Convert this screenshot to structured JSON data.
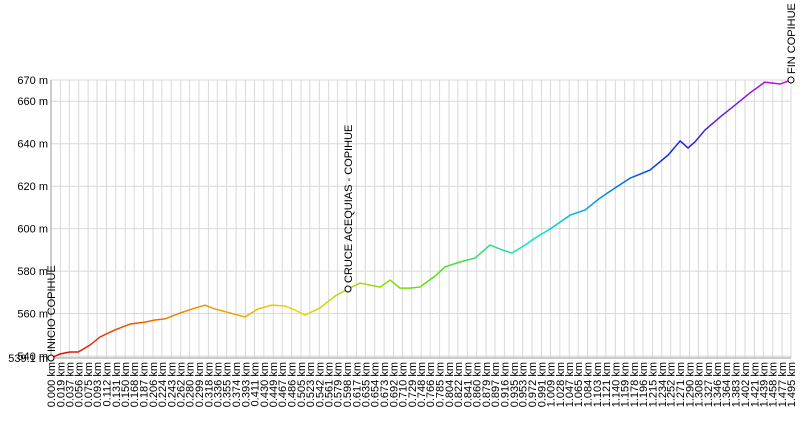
{
  "chart_data": {
    "type": "line",
    "x": [
      0,
      0.018,
      0.038,
      0.055,
      0.079,
      0.099,
      0.129,
      0.16,
      0.19,
      0.21,
      0.23,
      0.261,
      0.291,
      0.311,
      0.331,
      0.362,
      0.392,
      0.418,
      0.446,
      0.473,
      0.493,
      0.513,
      0.543,
      0.574,
      0.6,
      0.624,
      0.665,
      0.685,
      0.705,
      0.725,
      0.745,
      0.776,
      0.796,
      0.826,
      0.857,
      0.887,
      0.907,
      0.931,
      0.958,
      0.978,
      1.008,
      1.049,
      1.079,
      1.109,
      1.139,
      1.17,
      1.21,
      1.247,
      1.271,
      1.287,
      1.301,
      1.321,
      1.352,
      1.382,
      1.412,
      1.442,
      1.473,
      1.495
    ],
    "values": [
      539.1,
      541,
      541.9,
      541.9,
      545.2,
      549,
      552.3,
      555.1,
      556,
      557,
      557.5,
      560.3,
      562.6,
      564,
      562.2,
      560.3,
      558.4,
      562.2,
      564,
      563.6,
      561.7,
      559.3,
      562.6,
      568.3,
      571.6,
      574.4,
      572.5,
      575.8,
      572,
      572,
      572.5,
      577.7,
      582,
      584.3,
      586.2,
      592.3,
      590.4,
      588.5,
      592.3,
      595.6,
      599.8,
      606.4,
      608.8,
      614.4,
      619.1,
      623.8,
      627.6,
      634.7,
      641.3,
      638,
      640.9,
      646.4,
      652.6,
      658.2,
      663.9,
      669,
      668.1,
      670
    ],
    "gradient": [
      "#e00000",
      "#f08000",
      "#e8d800",
      "#60e000",
      "#00e0e0",
      "#0030e0",
      "#e000e0"
    ],
    "waypoints": [
      {
        "name": "INICIO COPIHUE",
        "x": 0,
        "y": 539.1
      },
      {
        "name": "CRUCE ACEQUIAS - COPIHUE",
        "x": 0.6,
        "y": 571.6
      },
      {
        "name": "FIN COPIHUE",
        "x": 1.495,
        "y": 670
      }
    ],
    "xlim": [
      0,
      1.495
    ],
    "ylim": [
      539.1,
      670
    ],
    "grid": true,
    "yticks": [
      {
        "value": 539.1,
        "label": "539.1 m"
      },
      {
        "value": 540,
        "label": "540 m"
      },
      {
        "value": 560,
        "label": "560 m"
      },
      {
        "value": 580,
        "label": "580 m"
      },
      {
        "value": 600,
        "label": "600 m"
      },
      {
        "value": 620,
        "label": "620 m"
      },
      {
        "value": 640,
        "label": "640 m"
      },
      {
        "value": 660,
        "label": "660 m"
      },
      {
        "value": 670,
        "label": "670 m"
      }
    ],
    "xticks": [
      {
        "value": 0,
        "label": "0.000 km"
      },
      {
        "value": 0.019,
        "label": "0.019 km"
      },
      {
        "value": 0.037,
        "label": "0.037 km"
      },
      {
        "value": 0.056,
        "label": "0.056 km"
      },
      {
        "value": 0.075,
        "label": "0.075 km"
      },
      {
        "value": 0.093,
        "label": "0.093 km"
      },
      {
        "value": 0.112,
        "label": "0.112 km"
      },
      {
        "value": 0.131,
        "label": "0.131 km"
      },
      {
        "value": 0.15,
        "label": "0.150 km"
      },
      {
        "value": 0.168,
        "label": "0.168 km"
      },
      {
        "value": 0.187,
        "label": "0.187 km"
      },
      {
        "value": 0.206,
        "label": "0.206 km"
      },
      {
        "value": 0.224,
        "label": "0.224 km"
      },
      {
        "value": 0.243,
        "label": "0.243 km"
      },
      {
        "value": 0.262,
        "label": "0.262 km"
      },
      {
        "value": 0.28,
        "label": "0.280 km"
      },
      {
        "value": 0.299,
        "label": "0.299 km"
      },
      {
        "value": 0.318,
        "label": "0.318 km"
      },
      {
        "value": 0.336,
        "label": "0.336 km"
      },
      {
        "value": 0.355,
        "label": "0.355 km"
      },
      {
        "value": 0.374,
        "label": "0.374 km"
      },
      {
        "value": 0.393,
        "label": "0.393 km"
      },
      {
        "value": 0.411,
        "label": "0.411 km"
      },
      {
        "value": 0.43,
        "label": "0.430 km"
      },
      {
        "value": 0.449,
        "label": "0.449 km"
      },
      {
        "value": 0.467,
        "label": "0.467 km"
      },
      {
        "value": 0.486,
        "label": "0.486 km"
      },
      {
        "value": 0.505,
        "label": "0.505 km"
      },
      {
        "value": 0.523,
        "label": "0.523 km"
      },
      {
        "value": 0.542,
        "label": "0.542 km"
      },
      {
        "value": 0.561,
        "label": "0.561 km"
      },
      {
        "value": 0.579,
        "label": "0.579 km"
      },
      {
        "value": 0.598,
        "label": "0.598 km"
      },
      {
        "value": 0.617,
        "label": "0.617 km"
      },
      {
        "value": 0.635,
        "label": "0.635 km"
      },
      {
        "value": 0.654,
        "label": "0.654 km"
      },
      {
        "value": 0.673,
        "label": "0.673 km"
      },
      {
        "value": 0.692,
        "label": "0.692 km"
      },
      {
        "value": 0.71,
        "label": "0.710 km"
      },
      {
        "value": 0.729,
        "label": "0.729 km"
      },
      {
        "value": 0.748,
        "label": "0.748 km"
      },
      {
        "value": 0.766,
        "label": "0.766 km"
      },
      {
        "value": 0.785,
        "label": "0.785 km"
      },
      {
        "value": 0.804,
        "label": "0.804 km"
      },
      {
        "value": 0.822,
        "label": "0.822 km"
      },
      {
        "value": 0.841,
        "label": "0.841 km"
      },
      {
        "value": 0.86,
        "label": "0.860 km"
      },
      {
        "value": 0.879,
        "label": "0.879 km"
      },
      {
        "value": 0.897,
        "label": "0.897 km"
      },
      {
        "value": 0.916,
        "label": "0.916 km"
      },
      {
        "value": 0.935,
        "label": "0.935 km"
      },
      {
        "value": 0.953,
        "label": "0.953 km"
      },
      {
        "value": 0.972,
        "label": "0.972 km"
      },
      {
        "value": 0.991,
        "label": "0.991 km"
      },
      {
        "value": 1.009,
        "label": "1.009 km"
      },
      {
        "value": 1.028,
        "label": "1.028 km"
      },
      {
        "value": 1.047,
        "label": "1.047 km"
      },
      {
        "value": 1.065,
        "label": "1.065 km"
      },
      {
        "value": 1.084,
        "label": "1.084 km"
      },
      {
        "value": 1.103,
        "label": "1.103 km"
      },
      {
        "value": 1.121,
        "label": "1.121 km"
      },
      {
        "value": 1.14,
        "label": "1.140 km"
      },
      {
        "value": 1.159,
        "label": "1.159 km"
      },
      {
        "value": 1.178,
        "label": "1.178 km"
      },
      {
        "value": 1.196,
        "label": "1.196 km"
      },
      {
        "value": 1.215,
        "label": "1.215 km"
      },
      {
        "value": 1.234,
        "label": "1.234 km"
      },
      {
        "value": 1.252,
        "label": "1.252 km"
      },
      {
        "value": 1.271,
        "label": "1.271 km"
      },
      {
        "value": 1.29,
        "label": "1.290 km"
      },
      {
        "value": 1.308,
        "label": "1.308 km"
      },
      {
        "value": 1.327,
        "label": "1.327 km"
      },
      {
        "value": 1.346,
        "label": "1.346 km"
      },
      {
        "value": 1.364,
        "label": "1.364 km"
      },
      {
        "value": 1.383,
        "label": "1.383 km"
      },
      {
        "value": 1.402,
        "label": "1.402 km"
      },
      {
        "value": 1.421,
        "label": "1.421 km"
      },
      {
        "value": 1.439,
        "label": "1.439 km"
      },
      {
        "value": 1.458,
        "label": "1.458 km"
      },
      {
        "value": 1.477,
        "label": "1.477 km"
      },
      {
        "value": 1.495,
        "label": "1.495 km"
      }
    ]
  }
}
